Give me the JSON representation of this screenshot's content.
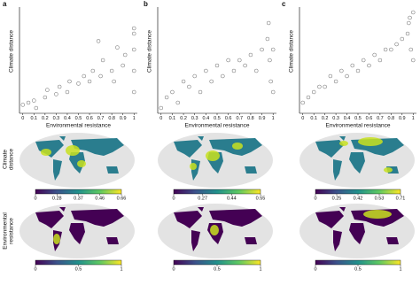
{
  "chart_data": [
    {
      "type": "scatter",
      "panel": "a",
      "x_label": "Environmental resistance",
      "y_label": "Climate distance",
      "xlim": [
        -0.03,
        1.03
      ],
      "ylim": [
        0,
        1
      ],
      "xticks": [
        0,
        0.1,
        0.2,
        0.3,
        0.4,
        0.5,
        0.6,
        0.7,
        0.8,
        0.9,
        1
      ],
      "x": [
        0,
        0.05,
        0.1,
        0.12,
        0.2,
        0.22,
        0.3,
        0.33,
        0.4,
        0.42,
        0.5,
        0.55,
        0.6,
        0.63,
        0.7,
        0.72,
        0.8,
        0.82,
        0.9,
        0.92,
        1,
        1,
        1,
        1,
        1,
        0.68,
        0.85
      ],
      "y": [
        0.08,
        0.1,
        0.12,
        0.05,
        0.15,
        0.22,
        0.18,
        0.25,
        0.2,
        0.3,
        0.28,
        0.35,
        0.3,
        0.4,
        0.35,
        0.5,
        0.4,
        0.3,
        0.45,
        0.55,
        0.2,
        0.4,
        0.6,
        0.75,
        0.8,
        0.68,
        0.62
      ]
    },
    {
      "type": "scatter",
      "panel": "b",
      "x_label": "Environmental resistance",
      "y_label": "Climate distance",
      "xlim": [
        -0.03,
        1.03
      ],
      "ylim": [
        0,
        1
      ],
      "xticks": [
        0,
        0.1,
        0.2,
        0.3,
        0.4,
        0.5,
        0.6,
        0.7,
        0.8,
        0.9,
        1
      ],
      "x": [
        0,
        0.05,
        0.1,
        0.15,
        0.2,
        0.25,
        0.3,
        0.35,
        0.4,
        0.45,
        0.5,
        0.55,
        0.6,
        0.65,
        0.7,
        0.75,
        0.8,
        0.85,
        0.9,
        0.95,
        0.96,
        0.97,
        0.98,
        1,
        1
      ],
      "y": [
        0.05,
        0.15,
        0.2,
        0.1,
        0.3,
        0.25,
        0.35,
        0.2,
        0.4,
        0.3,
        0.45,
        0.35,
        0.5,
        0.4,
        0.5,
        0.45,
        0.55,
        0.4,
        0.6,
        0.7,
        0.85,
        0.5,
        0.3,
        0.6,
        0.2
      ]
    },
    {
      "type": "scatter",
      "panel": "c",
      "x_label": "Environmental resistance",
      "y_label": "Climate distance",
      "xlim": [
        -0.03,
        1.03
      ],
      "ylim": [
        0,
        1
      ],
      "xticks": [
        0,
        0.1,
        0.2,
        0.3,
        0.4,
        0.5,
        0.6,
        0.7,
        0.8,
        0.9,
        1
      ],
      "x": [
        0,
        0.05,
        0.1,
        0.15,
        0.2,
        0.25,
        0.3,
        0.35,
        0.4,
        0.45,
        0.5,
        0.55,
        0.6,
        0.65,
        0.7,
        0.75,
        0.8,
        0.85,
        0.9,
        0.95,
        0.96,
        0.97,
        0.98,
        1,
        1
      ],
      "y": [
        0.1,
        0.15,
        0.2,
        0.25,
        0.25,
        0.35,
        0.3,
        0.4,
        0.35,
        0.45,
        0.4,
        0.5,
        0.45,
        0.55,
        0.5,
        0.6,
        0.6,
        0.65,
        0.7,
        0.75,
        0.85,
        0.9,
        0.6,
        0.95,
        0.5
      ]
    }
  ],
  "row_labels": [
    [
      "Climate",
      "distance"
    ],
    [
      "Environmental",
      "resistance"
    ]
  ],
  "maps": [
    {
      "climate_colorbar": [
        0,
        0.28,
        0.37,
        0.46,
        0.66
      ],
      "resistance_colorbar": [
        0,
        0.5,
        1
      ]
    },
    {
      "climate_colorbar": [
        0,
        0.27,
        0.44,
        0.55
      ],
      "resistance_colorbar": [
        0,
        0.5,
        1
      ]
    },
    {
      "climate_colorbar": [
        0,
        0.25,
        0.42,
        0.53,
        0.71
      ],
      "resistance_colorbar": [
        0,
        0.5,
        1
      ]
    }
  ]
}
